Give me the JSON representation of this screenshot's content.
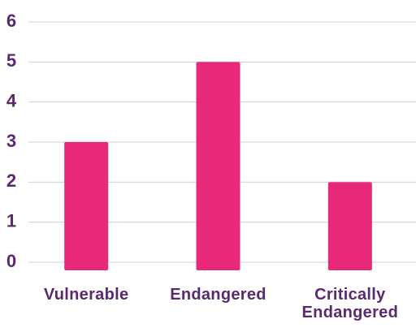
{
  "chart_data": {
    "type": "bar",
    "categories": [
      "Vulnerable",
      "Endangered",
      "Critically Endangered"
    ],
    "values": [
      3,
      5,
      2
    ],
    "color": "#e8297a",
    "ylim": [
      0,
      6
    ],
    "yticks": [
      0,
      1,
      2,
      3,
      4,
      5,
      6
    ],
    "grid": true
  }
}
